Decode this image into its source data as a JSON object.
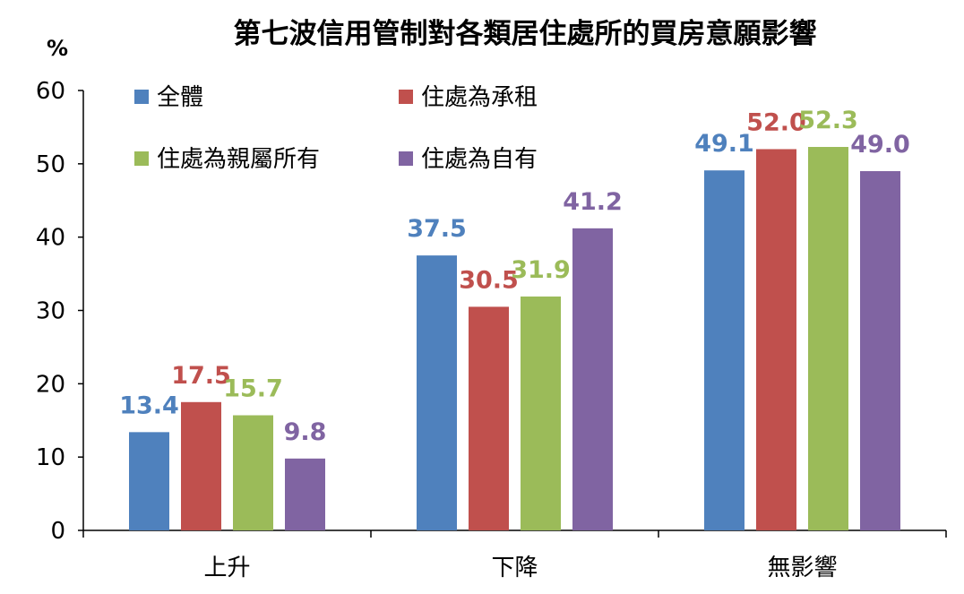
{
  "chart_data": {
    "type": "bar",
    "title": "第七波信用管制對各類居住處所的買房意願影響",
    "ylabel": "%",
    "xlabel": "",
    "ylim": [
      0,
      60
    ],
    "yticks": [
      0,
      10,
      20,
      30,
      40,
      50,
      60
    ],
    "categories": [
      "上升",
      "下降",
      "無影響"
    ],
    "series": [
      {
        "name": "全體",
        "color": "#4f81bd",
        "values": [
          13.4,
          37.5,
          49.1
        ]
      },
      {
        "name": "住處為承租",
        "color": "#c0504d",
        "values": [
          17.5,
          30.5,
          52.0
        ]
      },
      {
        "name": "住處為親屬所有",
        "color": "#9bbb59",
        "values": [
          15.7,
          31.9,
          52.3
        ]
      },
      {
        "name": "住處為自有",
        "color": "#8064a2",
        "values": [
          9.8,
          41.2,
          49.0
        ]
      }
    ],
    "data_labels": [
      [
        "13.4",
        "37.5",
        "49.1"
      ],
      [
        "17.5",
        "30.5",
        "52.0"
      ],
      [
        "15.7",
        "31.9",
        "52.3"
      ],
      [
        "9.8",
        "41.2",
        "49.0"
      ]
    ],
    "grid": false,
    "legend_position": "top-left, inside plot"
  }
}
